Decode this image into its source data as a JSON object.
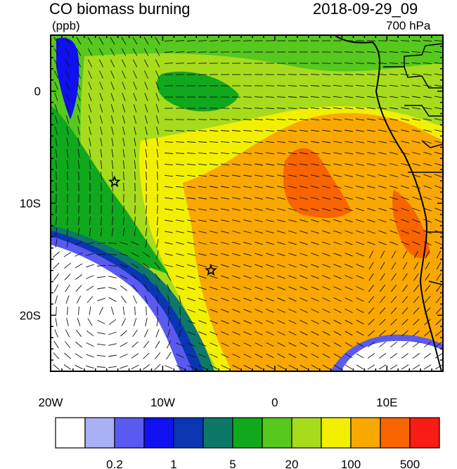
{
  "header": {
    "title": "CO biomass burning",
    "units": "(ppb)",
    "datetime": "2018-09-29_09",
    "level": "700 hPa"
  },
  "axes": {
    "lon_range": [
      -20,
      15
    ],
    "lat_range": [
      -25,
      5
    ],
    "lon_ticks": [
      {
        "value": -20,
        "label": "20W"
      },
      {
        "value": -10,
        "label": "10W"
      },
      {
        "value": 0,
        "label": "0"
      },
      {
        "value": 10,
        "label": "10E"
      }
    ],
    "lat_ticks": [
      {
        "value": 0,
        "label": "0"
      },
      {
        "value": -10,
        "label": "10S"
      },
      {
        "value": -20,
        "label": "20S"
      }
    ]
  },
  "colorbar": {
    "colors": [
      "#ffffff",
      "#aab0f4",
      "#5a5af0",
      "#1010f0",
      "#0a36b4",
      "#0e7868",
      "#10a81c",
      "#56c81e",
      "#a6dc1c",
      "#f2f000",
      "#f8a800",
      "#f86400",
      "#f81c14"
    ],
    "labels": [
      {
        "after_box": 2,
        "label": "0.2"
      },
      {
        "after_box": 4,
        "label": "1"
      },
      {
        "after_box": 6,
        "label": "5"
      },
      {
        "after_box": 8,
        "label": "20"
      },
      {
        "after_box": 10,
        "label": "100"
      },
      {
        "after_box": 12,
        "label": "500"
      }
    ]
  },
  "markers": [
    {
      "name": "star-north",
      "lon": -14.3,
      "lat": -8.1
    },
    {
      "name": "star-south",
      "lon": -5.7,
      "lat": -16.0
    }
  ]
}
